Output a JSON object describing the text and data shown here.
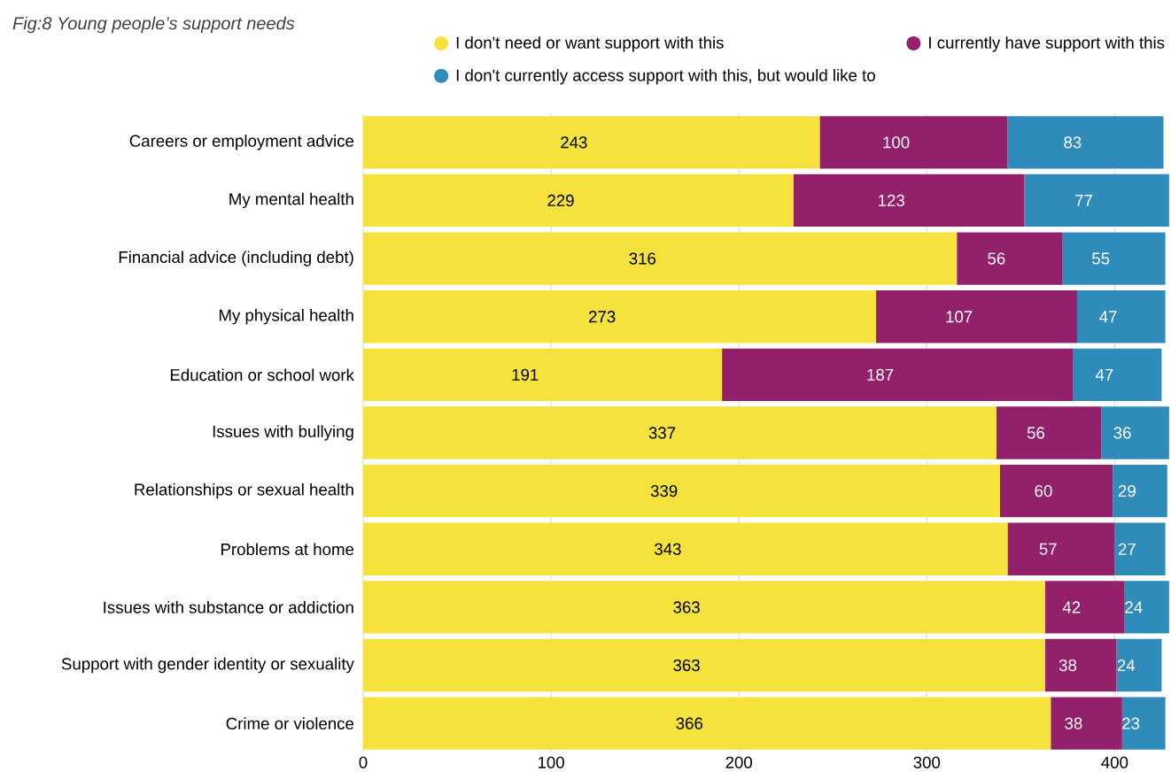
{
  "chart_data": {
    "type": "bar",
    "orientation": "horizontal",
    "stacked": true,
    "title": "Fig:8  Young people’s support needs",
    "categories": [
      "Careers or employment advice",
      "My mental health",
      "Financial advice (including debt)",
      "My physical health",
      "Education or school work",
      "Issues with bullying",
      "Relationships or sexual health",
      "Problems at home",
      "Issues with substance or addiction",
      "Support with gender identity or sexuality",
      "Crime or violence"
    ],
    "series": [
      {
        "name": "I don't need or want support with this",
        "color": "#f5e23d",
        "values": [
          243,
          229,
          316,
          273,
          191,
          337,
          339,
          343,
          363,
          363,
          366
        ]
      },
      {
        "name": "I currently have support with this",
        "color": "#93206b",
        "values": [
          100,
          123,
          56,
          107,
          187,
          56,
          60,
          57,
          42,
          38,
          38
        ]
      },
      {
        "name": "I don't currently access support with this, but would like to",
        "color": "#2e8bba",
        "values": [
          83,
          77,
          55,
          47,
          47,
          36,
          29,
          27,
          24,
          24,
          23
        ]
      }
    ],
    "xlim": [
      0,
      430
    ],
    "xticks": [
      0,
      100,
      200,
      300,
      400
    ],
    "grid": "x",
    "legend": "top right",
    "data_labels": true
  }
}
